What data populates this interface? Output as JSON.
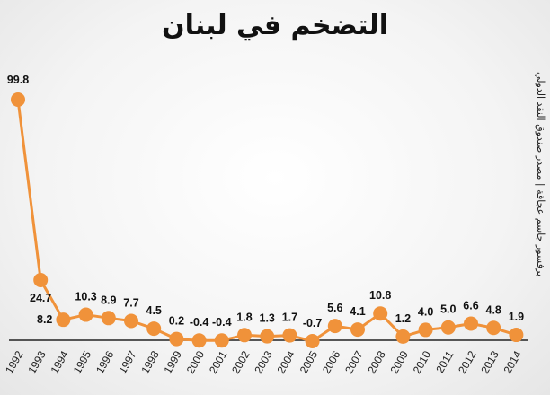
{
  "chart_data": {
    "type": "line",
    "title": "التضخم في لبنان",
    "side_note": "برفسور جاسم عجاقة | مصدر صندوق النقد الدولي",
    "x": [
      "1992",
      "1993",
      "1994",
      "1995",
      "1996",
      "1997",
      "1998",
      "1999",
      "2000",
      "2001",
      "2002",
      "2003",
      "2004",
      "2005",
      "2006",
      "2007",
      "2008",
      "2009",
      "2010",
      "2011",
      "2012",
      "2013",
      "2014"
    ],
    "values": [
      99.8,
      24.7,
      8.2,
      10.3,
      8.9,
      7.7,
      4.5,
      0.2,
      -0.4,
      -0.4,
      1.8,
      1.3,
      1.7,
      -0.7,
      5.6,
      4.1,
      10.8,
      1.2,
      4.0,
      5.0,
      6.6,
      4.8,
      1.9
    ],
    "data_labels": [
      "99.8",
      "24.7",
      "8.2",
      "10.3",
      "8.9",
      "7.7",
      "4.5",
      "0.2",
      "-0.4",
      "-0.4",
      "1.8",
      "1.3",
      "1.7",
      "-0.7",
      "5.6",
      "4.1",
      "10.8",
      "1.2",
      "4.0",
      "5.0",
      "6.6",
      "4.8",
      "1.9"
    ],
    "ylim": [
      -0.7,
      99.8
    ],
    "grid": false,
    "legend": "none",
    "colors": {
      "line": "#f0923a",
      "marker": "#f0923a",
      "axis": "#222222"
    }
  }
}
